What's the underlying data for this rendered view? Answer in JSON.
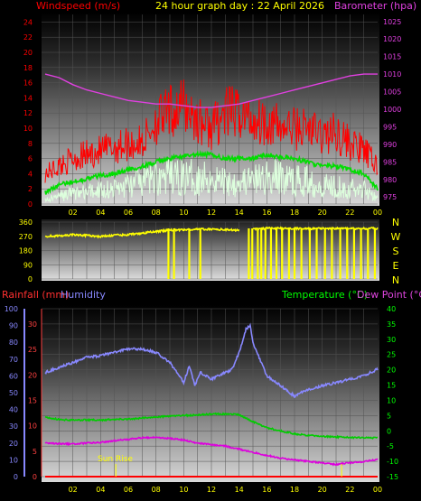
{
  "header": {
    "wind_label": "Windspeed (m/s)",
    "title": "24 hour graph day : 22 April 2026",
    "baro_label": "Barometer (hpa)"
  },
  "bottom_header": {
    "rain_label": "Rainfall (mm)",
    "humidity_label": "Humidity",
    "temp_label": "Temperature (°C)",
    "dew_label": "Dew Point (°C)"
  },
  "colors": {
    "wind": "#ff0000",
    "gust": "#ff0000",
    "average": "#00dd00",
    "min_wind": "#ddffdd",
    "barometer": "#e040e0",
    "direction": "#ffff00",
    "rain": "#ff0000",
    "humidity": "#8888ff",
    "temperature": "#00cc00",
    "dewpoint": "#dd00dd",
    "right_axis_temp": "#00ff00",
    "tick": "#ffff00"
  },
  "chart_data": [
    {
      "type": "line",
      "title": "24 hour graph day : 22 April 2026",
      "x_ticks": [
        "02",
        "04",
        "06",
        "08",
        "10",
        "12",
        "14",
        "16",
        "18",
        "20",
        "22",
        "00"
      ],
      "x_range_hours": [
        0,
        24
      ],
      "y_left": {
        "label": "Windspeed (m/s)",
        "ticks": [
          0,
          2,
          4,
          6,
          8,
          10,
          12,
          14,
          16,
          18,
          20,
          22,
          24
        ],
        "range": [
          0,
          25
        ]
      },
      "y_right": {
        "label": "Barometer (hpa)",
        "ticks": [
          975,
          980,
          985,
          990,
          995,
          1000,
          1005,
          1010,
          1015,
          1020,
          1025
        ],
        "range": [
          973,
          1027
        ]
      },
      "series": [
        {
          "name": "gust",
          "x": [
            0,
            1,
            2,
            3,
            4,
            5,
            6,
            7,
            8,
            9,
            10,
            11,
            12,
            13,
            14,
            15,
            16,
            17,
            18,
            19,
            20,
            21,
            22,
            23,
            24
          ],
          "values": [
            4,
            5,
            6,
            6.5,
            7,
            7.5,
            8,
            8,
            11,
            12,
            13,
            11,
            10,
            12,
            12,
            11,
            11,
            10,
            10,
            10,
            9,
            9.5,
            8,
            7,
            5
          ]
        },
        {
          "name": "average",
          "x": [
            0,
            1,
            2,
            3,
            4,
            5,
            6,
            7,
            8,
            9,
            10,
            11,
            12,
            13,
            14,
            15,
            16,
            17,
            18,
            19,
            20,
            21,
            22,
            23,
            24
          ],
          "values": [
            1.5,
            2.5,
            3,
            3.3,
            3.8,
            4,
            4.5,
            5,
            5.5,
            6,
            6.3,
            6.5,
            6.5,
            6,
            6,
            6,
            6.5,
            6.2,
            6,
            5.5,
            5,
            5,
            4.5,
            4,
            2
          ]
        },
        {
          "name": "min",
          "x": [
            0,
            1,
            2,
            3,
            4,
            5,
            6,
            7,
            8,
            9,
            10,
            11,
            12,
            13,
            14,
            15,
            16,
            17,
            18,
            19,
            20,
            21,
            22,
            23,
            24
          ],
          "values": [
            0.5,
            1,
            1.5,
            1.5,
            2,
            2,
            2.5,
            3,
            3.5,
            3.5,
            3.5,
            3.5,
            3.5,
            3,
            3,
            3,
            3.5,
            3.5,
            3,
            3,
            2.5,
            2.5,
            2,
            2,
            1
          ]
        },
        {
          "name": "barometer",
          "axis": "right",
          "x": [
            0,
            1,
            2,
            3,
            4,
            5,
            6,
            7,
            8,
            9,
            10,
            11,
            12,
            13,
            14,
            15,
            16,
            17,
            18,
            19,
            20,
            21,
            22,
            23,
            24
          ],
          "values": [
            1010,
            1009,
            1007,
            1005.5,
            1004.5,
            1003.5,
            1002.5,
            1002,
            1001.5,
            1001.5,
            1001,
            1000.5,
            1000.5,
            1001,
            1001.5,
            1002.5,
            1003.5,
            1004.5,
            1005.5,
            1006.5,
            1007.5,
            1008.5,
            1009.5,
            1010,
            1010
          ]
        }
      ]
    },
    {
      "type": "line",
      "x_ticks": [
        "02",
        "04",
        "06",
        "08",
        "10",
        "12",
        "14",
        "16",
        "18",
        "20",
        "22",
        "00"
      ],
      "y_left": {
        "ticks": [
          0,
          90,
          180,
          270,
          360
        ],
        "range": [
          0,
          360
        ]
      },
      "y_right": {
        "ticks": [
          "N",
          "W",
          "S",
          "E",
          "N"
        ]
      },
      "series": [
        {
          "name": "direction",
          "segments": [
            {
              "x": [
                0,
                1,
                2,
                3,
                4,
                5,
                6,
                7,
                8,
                9,
                10,
                11,
                12,
                13,
                14
              ],
              "values": [
                270,
                272,
                280,
                275,
                268,
                276,
                280,
                290,
                300,
                310,
                310,
                315,
                315,
                312,
                308
              ]
            },
            {
              "x": [
                15,
                16,
                17,
                18,
                19,
                20,
                21,
                22,
                23,
                24
              ],
              "values": [
                315,
                320,
                320,
                320,
                318,
                320,
                320,
                318,
                320,
                320
              ]
            }
          ],
          "drops_at_hours": [
            8.9,
            9.3,
            10.4,
            11.2,
            14.7,
            14.95,
            15.35,
            15.6,
            15.9,
            16.3,
            16.7,
            17.1,
            17.6,
            18.0,
            18.5,
            19.1,
            19.6,
            20.2,
            20.7,
            21.3,
            21.8,
            22.3,
            22.8,
            23.3,
            23.8
          ]
        }
      ]
    },
    {
      "type": "line",
      "x_ticks": [
        "02",
        "04",
        "06",
        "08",
        "10",
        "12",
        "14",
        "16",
        "18",
        "20",
        "22",
        "00"
      ],
      "y_left_outer": {
        "label": "Humidity",
        "ticks": [
          0,
          10,
          20,
          30,
          40,
          50,
          60,
          70,
          80,
          90,
          100
        ],
        "range": [
          0,
          100
        ]
      },
      "y_left_inner": {
        "label": "Rainfall (mm)",
        "ticks": [
          0,
          5,
          10,
          15,
          20,
          25,
          30
        ],
        "range": [
          0,
          30
        ]
      },
      "y_right": {
        "label": "Temperature (°C) / Dew Point (°C)",
        "ticks": [
          -15,
          -10,
          -5,
          0,
          5,
          10,
          15,
          20,
          25,
          30,
          35,
          40
        ],
        "range": [
          -15,
          40
        ]
      },
      "annotations": [
        {
          "label": "Sun Rise",
          "x_hour": 5.1
        },
        {
          "label": "",
          "x_hour": 21.4
        }
      ],
      "series": [
        {
          "name": "Humidity",
          "x": [
            0,
            1,
            2,
            3,
            4,
            5,
            6,
            7,
            8,
            9,
            10,
            10.4,
            10.8,
            11.2,
            12,
            13,
            13.5,
            14,
            14.5,
            14.8,
            15,
            15.5,
            16,
            17,
            18,
            19,
            20,
            21,
            22,
            23,
            24
          ],
          "values": [
            62,
            65,
            68,
            71,
            72,
            74,
            76,
            76,
            74,
            68,
            56,
            66,
            54,
            62,
            58,
            62,
            64,
            74,
            88,
            90,
            80,
            70,
            60,
            54,
            48,
            52,
            54,
            56,
            58,
            60,
            64
          ]
        },
        {
          "name": "Temperature",
          "axis": "right",
          "x": [
            0,
            1,
            2,
            3,
            4,
            5,
            6,
            7,
            8,
            9,
            10,
            11,
            12,
            13,
            14,
            15,
            16,
            17,
            18,
            19,
            20,
            21,
            22,
            23,
            24
          ],
          "values": [
            4.5,
            3.7,
            3.5,
            3.6,
            3.5,
            3.8,
            3.8,
            4.2,
            4.5,
            4.8,
            5,
            5.2,
            5.5,
            5.5,
            5.3,
            3,
            1,
            0,
            -1,
            -1.5,
            -1.8,
            -2,
            -2.2,
            -2.2,
            -2.3
          ]
        },
        {
          "name": "Dew Point",
          "axis": "right",
          "x": [
            0,
            1,
            2,
            3,
            4,
            5,
            6,
            7,
            8,
            9,
            10,
            11,
            12,
            13,
            14,
            15,
            16,
            17,
            18,
            19,
            20,
            21,
            22,
            23,
            24
          ],
          "values": [
            -4,
            -4.3,
            -4.3,
            -4,
            -3.8,
            -3.2,
            -2.8,
            -2.2,
            -2.2,
            -2.5,
            -3,
            -4,
            -4.5,
            -5,
            -6,
            -7,
            -8,
            -9,
            -9.5,
            -10,
            -10.5,
            -11,
            -10.5,
            -10,
            -9.5
          ]
        },
        {
          "name": "Rainfall",
          "x": [
            0,
            24
          ],
          "values": [
            0,
            0
          ]
        }
      ]
    }
  ]
}
